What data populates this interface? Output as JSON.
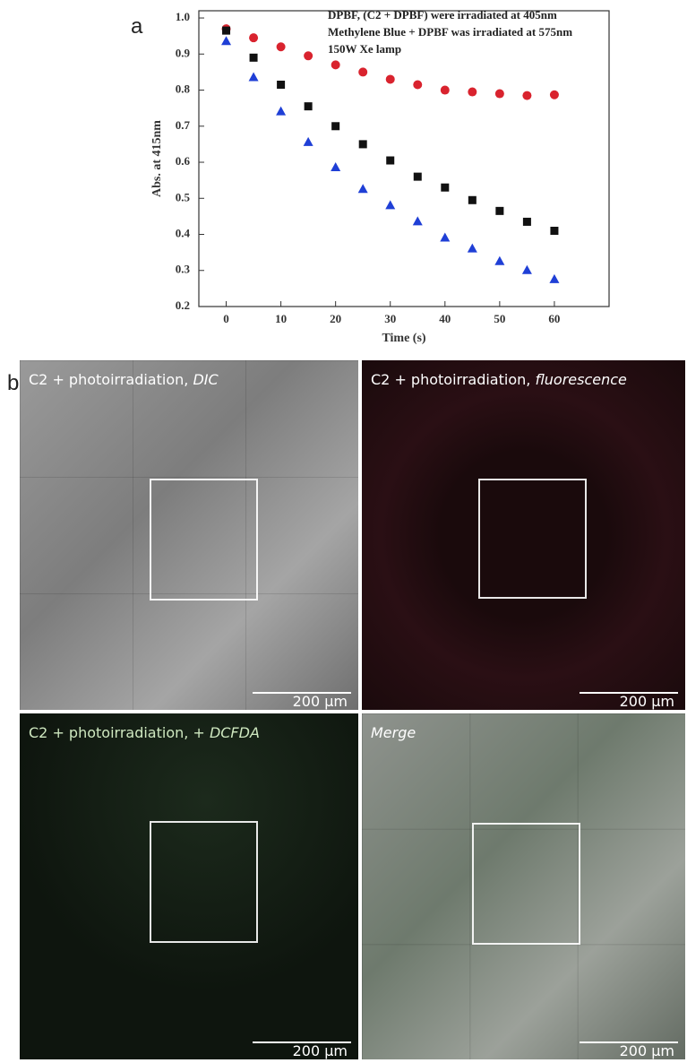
{
  "chart_data": {
    "type": "scatter",
    "panel_label": "a",
    "x_label": "Time (s)",
    "y_label": "Abs. at 415nm",
    "annotations": [
      "DPBF, (C2 + DPBF) were irradiated at 405nm",
      "Methylene Blue + DPBF was irradiated at 575nm",
      "150W Xe lamp"
    ],
    "x": [
      0,
      5,
      10,
      15,
      20,
      25,
      30,
      35,
      40,
      45,
      50,
      55,
      60
    ],
    "series": [
      {
        "color": "#d9232e",
        "marker": "circle",
        "values": [
          0.97,
          0.945,
          0.92,
          0.895,
          0.87,
          0.85,
          0.83,
          0.815,
          0.8,
          0.795,
          0.79,
          0.785,
          0.787
        ]
      },
      {
        "color": "#111111",
        "marker": "square",
        "values": [
          0.965,
          0.89,
          0.815,
          0.755,
          0.7,
          0.65,
          0.605,
          0.56,
          0.53,
          0.495,
          0.465,
          0.435,
          0.41
        ]
      },
      {
        "color": "#1f3fd6",
        "marker": "triangle",
        "values": [
          0.935,
          0.835,
          0.74,
          0.655,
          0.585,
          0.525,
          0.48,
          0.435,
          0.39,
          0.36,
          0.325,
          0.3,
          0.275
        ]
      }
    ],
    "xlim": [
      -5,
      70
    ],
    "xticks": [
      0,
      10,
      20,
      30,
      40,
      50,
      60
    ],
    "ylim": [
      0.2,
      1.02
    ],
    "yticks": [
      0.2,
      0.3,
      0.4,
      0.5,
      0.6,
      0.7,
      0.8,
      0.9,
      {
        "value": 1,
        "label": "1.0"
      }
    ],
    "grid": false
  },
  "figure": {
    "panel_label": "b",
    "panels": [
      {
        "caption": "C2 + photoirradiation,",
        "caption_italic": "DIC",
        "scale_bar": "200 µm"
      },
      {
        "caption": "C2 + photoirradiation,",
        "caption_italic": "fluorescence",
        "scale_bar": "200 µm"
      },
      {
        "caption": "C2 + photoirradiation, +",
        "caption_italic": "DCFDA",
        "scale_bar": "200 µm"
      },
      {
        "caption": "",
        "caption_italic": "Merge",
        "scale_bar": "200 µm"
      }
    ]
  }
}
